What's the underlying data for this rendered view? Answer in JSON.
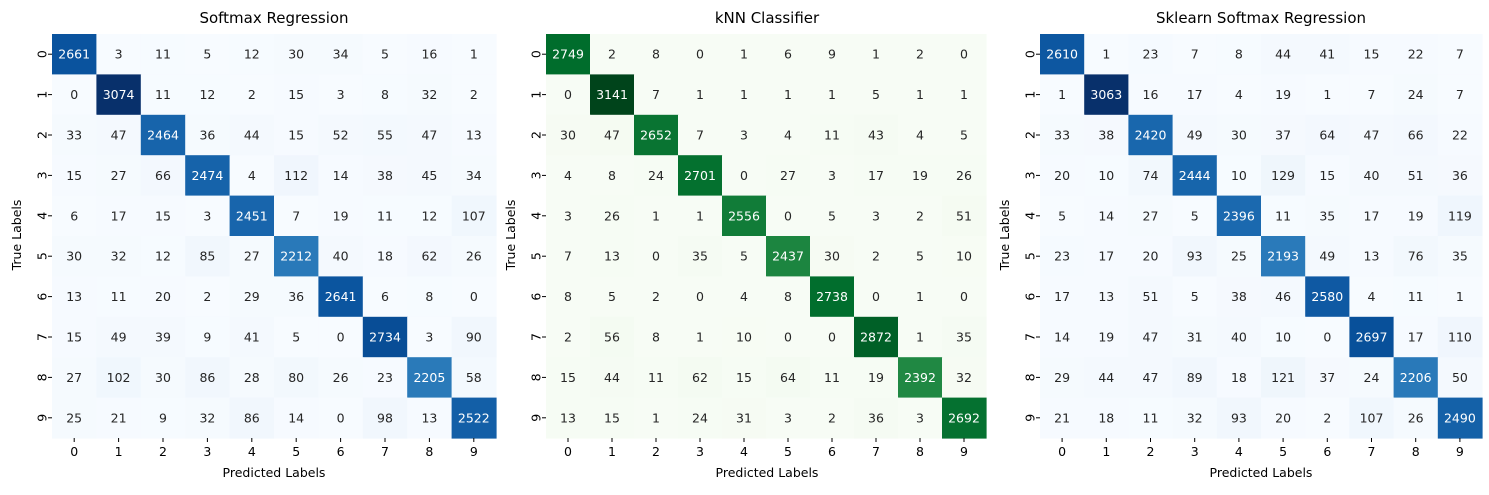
{
  "chart_data": [
    {
      "type": "heatmap",
      "title": "Softmax Regression",
      "xlabel": "Predicted Labels",
      "ylabel": "True Labels",
      "colormap": "Blues",
      "x_ticks": [
        "0",
        "1",
        "2",
        "3",
        "4",
        "5",
        "6",
        "7",
        "8",
        "9"
      ],
      "y_ticks": [
        "0",
        "1",
        "2",
        "3",
        "4",
        "5",
        "6",
        "7",
        "8",
        "9"
      ],
      "matrix": [
        [
          2661,
          3,
          11,
          5,
          12,
          30,
          34,
          5,
          16,
          1
        ],
        [
          0,
          3074,
          11,
          12,
          2,
          15,
          3,
          8,
          32,
          2
        ],
        [
          33,
          47,
          2464,
          36,
          44,
          15,
          52,
          55,
          47,
          13
        ],
        [
          15,
          27,
          66,
          2474,
          4,
          112,
          14,
          38,
          45,
          34
        ],
        [
          6,
          17,
          15,
          3,
          2451,
          7,
          19,
          11,
          12,
          107
        ],
        [
          30,
          32,
          12,
          85,
          27,
          2212,
          40,
          18,
          62,
          26
        ],
        [
          13,
          11,
          20,
          2,
          29,
          36,
          2641,
          6,
          8,
          0
        ],
        [
          15,
          49,
          39,
          9,
          41,
          5,
          0,
          2734,
          3,
          90
        ],
        [
          27,
          102,
          30,
          86,
          28,
          80,
          26,
          23,
          2205,
          58
        ],
        [
          25,
          21,
          9,
          32,
          86,
          14,
          0,
          98,
          13,
          2522
        ]
      ]
    },
    {
      "type": "heatmap",
      "title": "kNN Classifier",
      "xlabel": "Predicted Labels",
      "ylabel": "True Labels",
      "colormap": "Greens",
      "x_ticks": [
        "0",
        "1",
        "2",
        "3",
        "4",
        "5",
        "6",
        "7",
        "8",
        "9"
      ],
      "y_ticks": [
        "0",
        "1",
        "2",
        "3",
        "4",
        "5",
        "6",
        "7",
        "8",
        "9"
      ],
      "matrix": [
        [
          2749,
          2,
          8,
          0,
          1,
          6,
          9,
          1,
          2,
          0
        ],
        [
          0,
          3141,
          7,
          1,
          1,
          1,
          1,
          5,
          1,
          1
        ],
        [
          30,
          47,
          2652,
          7,
          3,
          4,
          11,
          43,
          4,
          5
        ],
        [
          4,
          8,
          24,
          2701,
          0,
          27,
          3,
          17,
          19,
          26
        ],
        [
          3,
          26,
          1,
          1,
          2556,
          0,
          5,
          3,
          2,
          51
        ],
        [
          7,
          13,
          0,
          35,
          5,
          2437,
          30,
          2,
          5,
          10
        ],
        [
          8,
          5,
          2,
          0,
          4,
          8,
          2738,
          0,
          1,
          0
        ],
        [
          2,
          56,
          8,
          1,
          10,
          0,
          0,
          2872,
          1,
          35
        ],
        [
          15,
          44,
          11,
          62,
          15,
          64,
          11,
          19,
          2392,
          32
        ],
        [
          13,
          15,
          1,
          24,
          31,
          3,
          2,
          36,
          3,
          2692
        ]
      ]
    },
    {
      "type": "heatmap",
      "title": "Sklearn Softmax Regression",
      "xlabel": "Predicted Labels",
      "ylabel": "True Labels",
      "colormap": "Blues",
      "x_ticks": [
        "0",
        "1",
        "2",
        "3",
        "4",
        "5",
        "6",
        "7",
        "8",
        "9"
      ],
      "y_ticks": [
        "0",
        "1",
        "2",
        "3",
        "4",
        "5",
        "6",
        "7",
        "8",
        "9"
      ],
      "matrix": [
        [
          2610,
          1,
          23,
          7,
          8,
          44,
          41,
          15,
          22,
          7
        ],
        [
          1,
          3063,
          16,
          17,
          4,
          19,
          1,
          7,
          24,
          7
        ],
        [
          33,
          38,
          2420,
          49,
          30,
          37,
          64,
          47,
          66,
          22
        ],
        [
          20,
          10,
          74,
          2444,
          10,
          129,
          15,
          40,
          51,
          36
        ],
        [
          5,
          14,
          27,
          5,
          2396,
          11,
          35,
          17,
          19,
          119
        ],
        [
          23,
          17,
          20,
          93,
          25,
          2193,
          49,
          13,
          76,
          35
        ],
        [
          17,
          13,
          51,
          5,
          38,
          46,
          2580,
          4,
          11,
          1
        ],
        [
          14,
          19,
          47,
          31,
          40,
          10,
          0,
          2697,
          17,
          110
        ],
        [
          29,
          44,
          47,
          89,
          18,
          121,
          37,
          24,
          2206,
          50
        ],
        [
          21,
          18,
          11,
          32,
          93,
          20,
          2,
          107,
          26,
          2490
        ]
      ]
    }
  ]
}
